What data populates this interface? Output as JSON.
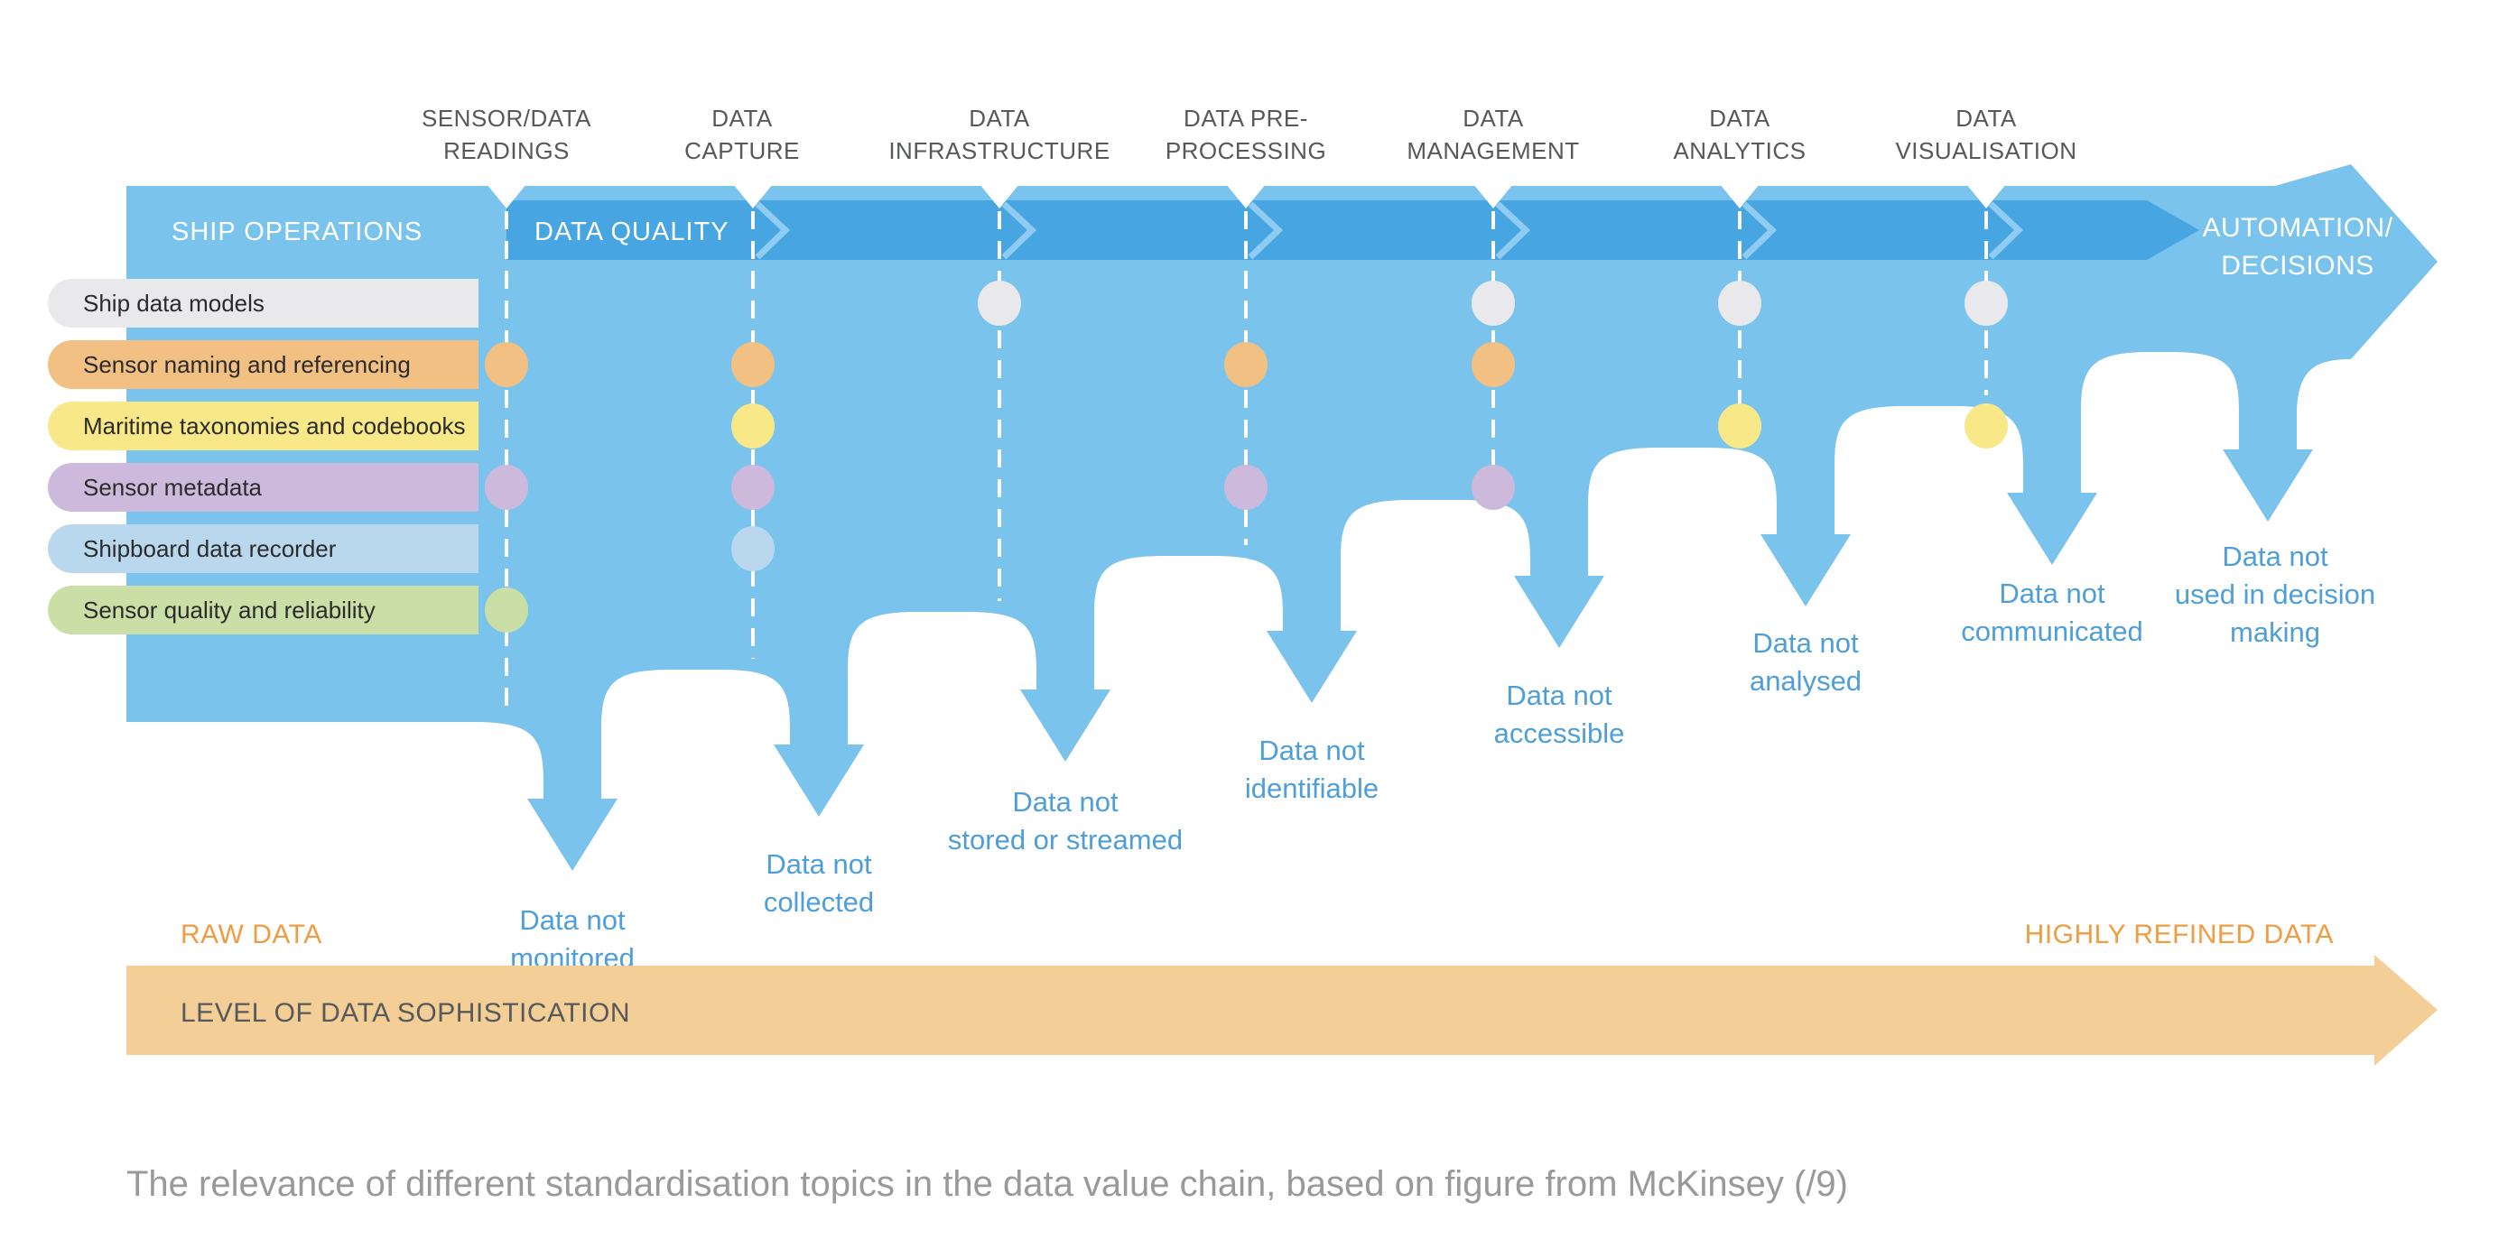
{
  "stages": [
    {
      "line1": "SENSOR/DATA",
      "line2": "READINGS"
    },
    {
      "line1": "DATA",
      "line2": "CAPTURE"
    },
    {
      "line1": "DATA",
      "line2": "INFRASTRUCTURE"
    },
    {
      "line1": "DATA PRE-",
      "line2": "PROCESSING"
    },
    {
      "line1": "DATA",
      "line2": "MANAGEMENT"
    },
    {
      "line1": "DATA",
      "line2": "ANALYTICS"
    },
    {
      "line1": "DATA",
      "line2": "VISUALISATION"
    }
  ],
  "flow_band": {
    "ship_operations": "SHIP OPERATIONS",
    "data_quality": "DATA QUALITY",
    "automation_line1": "AUTOMATION/",
    "automation_line2": "DECISIONS"
  },
  "topics": [
    {
      "label": "Ship data models",
      "color": "#E9E9EB",
      "dot_stages": [
        3,
        5,
        6,
        7
      ]
    },
    {
      "label": "Sensor naming and referencing",
      "color": "#F2C083",
      "dot_stages": [
        1,
        2,
        4,
        5
      ]
    },
    {
      "label": "Maritime taxonomies and codebooks",
      "color": "#F8E887",
      "dot_stages": [
        2,
        6,
        7
      ]
    },
    {
      "label": "Sensor metadata",
      "color": "#CDB9DC",
      "dot_stages": [
        1,
        2,
        4,
        5
      ]
    },
    {
      "label": "Shipboard data recorder",
      "color": "#B9D8EE",
      "dot_stages": [
        2
      ]
    },
    {
      "label": "Sensor quality and reliability",
      "color": "#CADFA6",
      "dot_stages": [
        1
      ]
    }
  ],
  "losses": [
    {
      "lines": [
        "Data not",
        "monitored"
      ]
    },
    {
      "lines": [
        "Data not",
        "collected"
      ]
    },
    {
      "lines": [
        "Data not",
        "stored or streamed"
      ]
    },
    {
      "lines": [
        "Data not",
        "identifiable"
      ]
    },
    {
      "lines": [
        "Data not",
        "accessible"
      ]
    },
    {
      "lines": [
        "Data not",
        "analysed"
      ]
    },
    {
      "lines": [
        "Data not",
        "communicated"
      ]
    },
    {
      "lines": [
        "Data not",
        "used in decision",
        "making"
      ]
    }
  ],
  "sophistication_axis": {
    "left_label": "RAW DATA",
    "right_label": "HIGHLY REFINED DATA",
    "bar_label": "LEVEL OF DATA SOPHISTICATION"
  },
  "caption": "The relevance of different standardisation topics in the data value chain, based on figure from McKinsey (/9)",
  "colors": {
    "flow": "#79C3EC",
    "flow_dark": "#47A6E2",
    "chevron_outline": "#90CCF1",
    "dash": "#FFFFFF",
    "notch": "#FFFFFF",
    "band_text": "#FFFFFF",
    "loss_text": "#4E9FD9",
    "header_text": "#57585A",
    "pill_text": "#2B2B2B",
    "axis_bar": "#F4CE97",
    "axis_text": "#F09C42",
    "bar_label_text": "#58595B",
    "caption_text": "#999999"
  }
}
